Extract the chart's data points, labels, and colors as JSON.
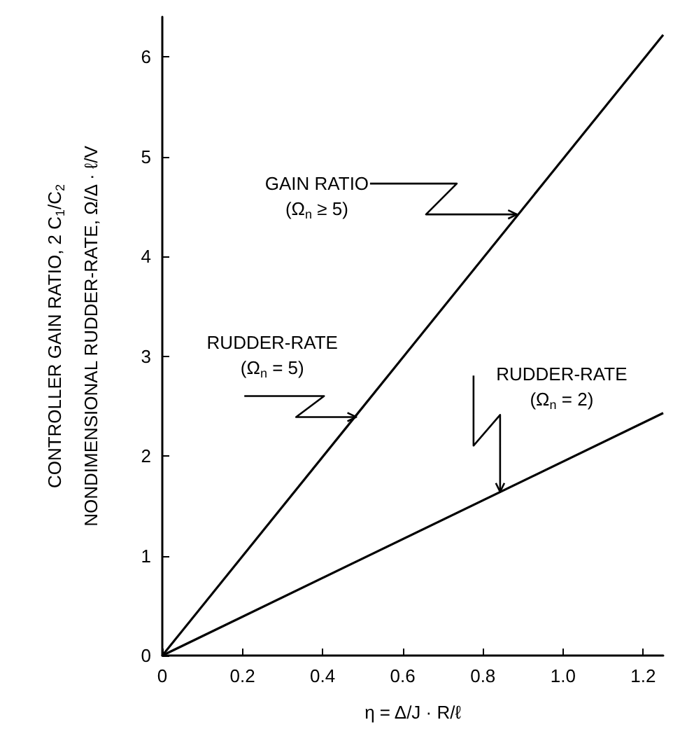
{
  "chart_data": {
    "type": "line",
    "xlabel": "η = Δ/J · R/ℓ",
    "ylabel": "CONTROLLER GAIN RATIO, 2 C$_{1}$/C$_{2}$\nNONDIMENSIONAL RUDDER-RATE, Ω/Δ · ℓ/V",
    "x": [
      0,
      1.25
    ],
    "series": [
      {
        "color": "#000000",
        "values": [
          0,
          6.22
        ]
      },
      {
        "color": "#000000",
        "values": [
          0,
          2.43
        ]
      }
    ],
    "xlim": [
      0,
      1.25
    ],
    "ylim": [
      0,
      6.4
    ],
    "xticks": [
      0,
      0.2,
      0.4,
      0.6,
      0.8,
      {
        "value": 1,
        "label": "1.0"
      },
      1.2
    ],
    "yticks": [
      0,
      1,
      2,
      3,
      4,
      5,
      6
    ],
    "grid": false,
    "marker": "none",
    "line_style": "solid",
    "annotations": [
      {
        "text": "GAIN RATIO\n(Ω$_{n}$ ≥ 5)",
        "x": 0.885,
        "y": 4.42
      },
      {
        "text": "RUDDER-RATE\n(Ω$_{n}$ = 5)",
        "x": 0.484,
        "y": 2.39
      },
      {
        "text": "RUDDER-RATE\n(Ω$_{n}$ = 2)",
        "x": 0.843,
        "y": 1.64
      }
    ]
  }
}
